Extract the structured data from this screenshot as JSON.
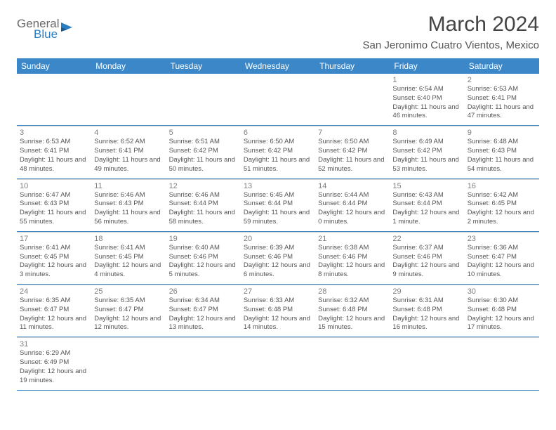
{
  "logo": {
    "general": "General",
    "blue": "Blue"
  },
  "title": "March 2024",
  "location": "San Jeronimo Cuatro Vientos, Mexico",
  "colors": {
    "header_bg": "#3b87c8",
    "header_text": "#ffffff",
    "border": "#3b87c8",
    "cell_border": "#d0d0d0",
    "daynum": "#808080",
    "text": "#555555"
  },
  "weekdays": [
    "Sunday",
    "Monday",
    "Tuesday",
    "Wednesday",
    "Thursday",
    "Friday",
    "Saturday"
  ],
  "weeks": [
    [
      null,
      null,
      null,
      null,
      null,
      {
        "n": "1",
        "sr": "6:54 AM",
        "ss": "6:40 PM",
        "dl": "11 hours and 46 minutes."
      },
      {
        "n": "2",
        "sr": "6:53 AM",
        "ss": "6:41 PM",
        "dl": "11 hours and 47 minutes."
      }
    ],
    [
      {
        "n": "3",
        "sr": "6:53 AM",
        "ss": "6:41 PM",
        "dl": "11 hours and 48 minutes."
      },
      {
        "n": "4",
        "sr": "6:52 AM",
        "ss": "6:41 PM",
        "dl": "11 hours and 49 minutes."
      },
      {
        "n": "5",
        "sr": "6:51 AM",
        "ss": "6:42 PM",
        "dl": "11 hours and 50 minutes."
      },
      {
        "n": "6",
        "sr": "6:50 AM",
        "ss": "6:42 PM",
        "dl": "11 hours and 51 minutes."
      },
      {
        "n": "7",
        "sr": "6:50 AM",
        "ss": "6:42 PM",
        "dl": "11 hours and 52 minutes."
      },
      {
        "n": "8",
        "sr": "6:49 AM",
        "ss": "6:42 PM",
        "dl": "11 hours and 53 minutes."
      },
      {
        "n": "9",
        "sr": "6:48 AM",
        "ss": "6:43 PM",
        "dl": "11 hours and 54 minutes."
      }
    ],
    [
      {
        "n": "10",
        "sr": "6:47 AM",
        "ss": "6:43 PM",
        "dl": "11 hours and 55 minutes."
      },
      {
        "n": "11",
        "sr": "6:46 AM",
        "ss": "6:43 PM",
        "dl": "11 hours and 56 minutes."
      },
      {
        "n": "12",
        "sr": "6:46 AM",
        "ss": "6:44 PM",
        "dl": "11 hours and 58 minutes."
      },
      {
        "n": "13",
        "sr": "6:45 AM",
        "ss": "6:44 PM",
        "dl": "11 hours and 59 minutes."
      },
      {
        "n": "14",
        "sr": "6:44 AM",
        "ss": "6:44 PM",
        "dl": "12 hours and 0 minutes."
      },
      {
        "n": "15",
        "sr": "6:43 AM",
        "ss": "6:44 PM",
        "dl": "12 hours and 1 minute."
      },
      {
        "n": "16",
        "sr": "6:42 AM",
        "ss": "6:45 PM",
        "dl": "12 hours and 2 minutes."
      }
    ],
    [
      {
        "n": "17",
        "sr": "6:41 AM",
        "ss": "6:45 PM",
        "dl": "12 hours and 3 minutes."
      },
      {
        "n": "18",
        "sr": "6:41 AM",
        "ss": "6:45 PM",
        "dl": "12 hours and 4 minutes."
      },
      {
        "n": "19",
        "sr": "6:40 AM",
        "ss": "6:46 PM",
        "dl": "12 hours and 5 minutes."
      },
      {
        "n": "20",
        "sr": "6:39 AM",
        "ss": "6:46 PM",
        "dl": "12 hours and 6 minutes."
      },
      {
        "n": "21",
        "sr": "6:38 AM",
        "ss": "6:46 PM",
        "dl": "12 hours and 8 minutes."
      },
      {
        "n": "22",
        "sr": "6:37 AM",
        "ss": "6:46 PM",
        "dl": "12 hours and 9 minutes."
      },
      {
        "n": "23",
        "sr": "6:36 AM",
        "ss": "6:47 PM",
        "dl": "12 hours and 10 minutes."
      }
    ],
    [
      {
        "n": "24",
        "sr": "6:35 AM",
        "ss": "6:47 PM",
        "dl": "12 hours and 11 minutes."
      },
      {
        "n": "25",
        "sr": "6:35 AM",
        "ss": "6:47 PM",
        "dl": "12 hours and 12 minutes."
      },
      {
        "n": "26",
        "sr": "6:34 AM",
        "ss": "6:47 PM",
        "dl": "12 hours and 13 minutes."
      },
      {
        "n": "27",
        "sr": "6:33 AM",
        "ss": "6:48 PM",
        "dl": "12 hours and 14 minutes."
      },
      {
        "n": "28",
        "sr": "6:32 AM",
        "ss": "6:48 PM",
        "dl": "12 hours and 15 minutes."
      },
      {
        "n": "29",
        "sr": "6:31 AM",
        "ss": "6:48 PM",
        "dl": "12 hours and 16 minutes."
      },
      {
        "n": "30",
        "sr": "6:30 AM",
        "ss": "6:48 PM",
        "dl": "12 hours and 17 minutes."
      }
    ],
    [
      {
        "n": "31",
        "sr": "6:29 AM",
        "ss": "6:49 PM",
        "dl": "12 hours and 19 minutes."
      },
      null,
      null,
      null,
      null,
      null,
      null
    ]
  ],
  "labels": {
    "sunrise": "Sunrise:",
    "sunset": "Sunset:",
    "daylight": "Daylight:"
  }
}
